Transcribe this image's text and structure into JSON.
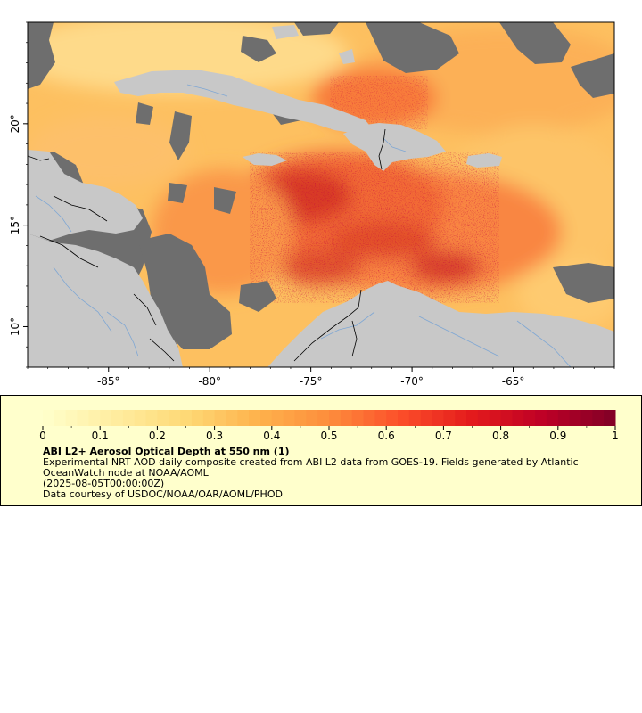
{
  "map": {
    "x_ticks": [
      "-85°",
      "-80°",
      "-75°",
      "-70°",
      "-65°"
    ],
    "x_tick_values": [
      -85,
      -80,
      -75,
      -70,
      -65
    ],
    "y_ticks": [
      "20°",
      "15°",
      "10°"
    ],
    "y_tick_values": [
      20,
      15,
      10
    ],
    "lon_range": [
      -89,
      -60
    ],
    "lat_range": [
      8,
      25
    ],
    "colors": {
      "land": "#c8c8c8",
      "no_data": "#6e6e6e",
      "rivers": "#7fa7d4",
      "borders": "#000000"
    }
  },
  "colorbar": {
    "tick_labels": [
      "0",
      "0.1",
      "0.2",
      "0.3",
      "0.4",
      "0.5",
      "0.6",
      "0.7",
      "0.8",
      "0.9",
      "1"
    ],
    "tick_values": [
      0,
      0.1,
      0.2,
      0.3,
      0.4,
      0.5,
      0.6,
      0.7,
      0.8,
      0.9,
      1
    ],
    "range": [
      0,
      1
    ],
    "colors": [
      "#ffffcc",
      "#ffeda0",
      "#fed976",
      "#feb24c",
      "#fd8d3c",
      "#fc4e2a",
      "#e31a1c",
      "#bd0026",
      "#800026"
    ]
  },
  "legend": {
    "title": "ABI L2+ Aerosol Optical Depth at 550 nm (1)",
    "description": "Experimental NRT AOD daily composite created from ABI L2 data from GOES-19. Fields generated by Atlantic OceanWatch node at NOAA/AOML",
    "date": "(2025-08-05T00:00:00Z)",
    "credit": "Data courtesy of USDOC/NOAA/OAR/AOML/PHOD"
  }
}
